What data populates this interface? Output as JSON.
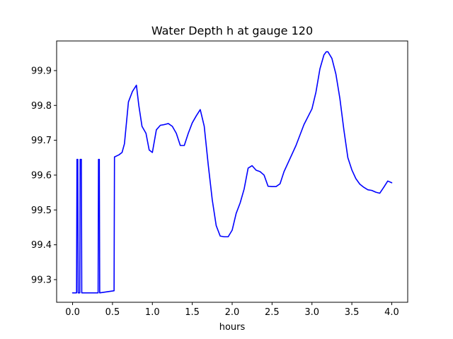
{
  "chart_data": {
    "type": "line",
    "title": "Water Depth h at gauge 120",
    "xlabel": "hours",
    "ylabel": "",
    "xlim": [
      -0.2,
      4.2
    ],
    "ylim": [
      99.235,
      99.985
    ],
    "xticks": [
      0.0,
      0.5,
      1.0,
      1.5,
      2.0,
      2.5,
      3.0,
      3.5,
      4.0
    ],
    "xtick_labels": [
      "0.0",
      "0.5",
      "1.0",
      "1.5",
      "2.0",
      "2.5",
      "3.0",
      "3.5",
      "4.0"
    ],
    "yticks": [
      99.3,
      99.4,
      99.5,
      99.6,
      99.7,
      99.8,
      99.9
    ],
    "ytick_labels": [
      "99.3",
      "99.4",
      "99.5",
      "99.6",
      "99.7",
      "99.8",
      "99.9"
    ],
    "grid": false,
    "series": [
      {
        "color": "#0000ff",
        "x": [
          0.0,
          0.05,
          0.055,
          0.065,
          0.07,
          0.09,
          0.095,
          0.11,
          0.115,
          0.125,
          0.13,
          0.32,
          0.325,
          0.335,
          0.34,
          0.52,
          0.525,
          0.58,
          0.62,
          0.65,
          0.7,
          0.75,
          0.8,
          0.83,
          0.87,
          0.92,
          0.96,
          1.0,
          1.05,
          1.1,
          1.15,
          1.2,
          1.25,
          1.3,
          1.35,
          1.4,
          1.45,
          1.5,
          1.55,
          1.6,
          1.65,
          1.7,
          1.75,
          1.8,
          1.85,
          1.9,
          1.95,
          2.0,
          2.05,
          2.1,
          2.15,
          2.2,
          2.25,
          2.3,
          2.35,
          2.4,
          2.45,
          2.5,
          2.55,
          2.6,
          2.65,
          2.7,
          2.8,
          2.9,
          3.0,
          3.05,
          3.1,
          3.15,
          3.18,
          3.2,
          3.25,
          3.3,
          3.35,
          3.4,
          3.45,
          3.5,
          3.55,
          3.6,
          3.65,
          3.7,
          3.75,
          3.8,
          3.85,
          3.9,
          3.95,
          4.0
        ],
        "y": [
          99.262,
          99.262,
          99.645,
          99.645,
          99.262,
          99.262,
          99.645,
          99.645,
          99.262,
          99.262,
          99.262,
          99.262,
          99.645,
          99.645,
          99.262,
          99.268,
          99.652,
          99.658,
          99.665,
          99.69,
          99.81,
          99.84,
          99.858,
          99.8,
          99.74,
          99.72,
          99.672,
          99.665,
          99.73,
          99.743,
          99.745,
          99.748,
          99.74,
          99.72,
          99.685,
          99.685,
          99.72,
          99.75,
          99.77,
          99.788,
          99.74,
          99.63,
          99.53,
          99.455,
          99.425,
          99.423,
          99.423,
          99.442,
          99.49,
          99.52,
          99.56,
          99.62,
          99.627,
          99.614,
          99.61,
          99.6,
          99.568,
          99.567,
          99.567,
          99.575,
          99.61,
          99.635,
          99.685,
          99.745,
          99.79,
          99.838,
          99.905,
          99.945,
          99.954,
          99.954,
          99.935,
          99.89,
          99.82,
          99.73,
          99.65,
          99.615,
          99.59,
          99.574,
          99.565,
          99.558,
          99.556,
          99.551,
          99.548,
          99.565,
          99.583,
          99.578
        ]
      }
    ]
  }
}
